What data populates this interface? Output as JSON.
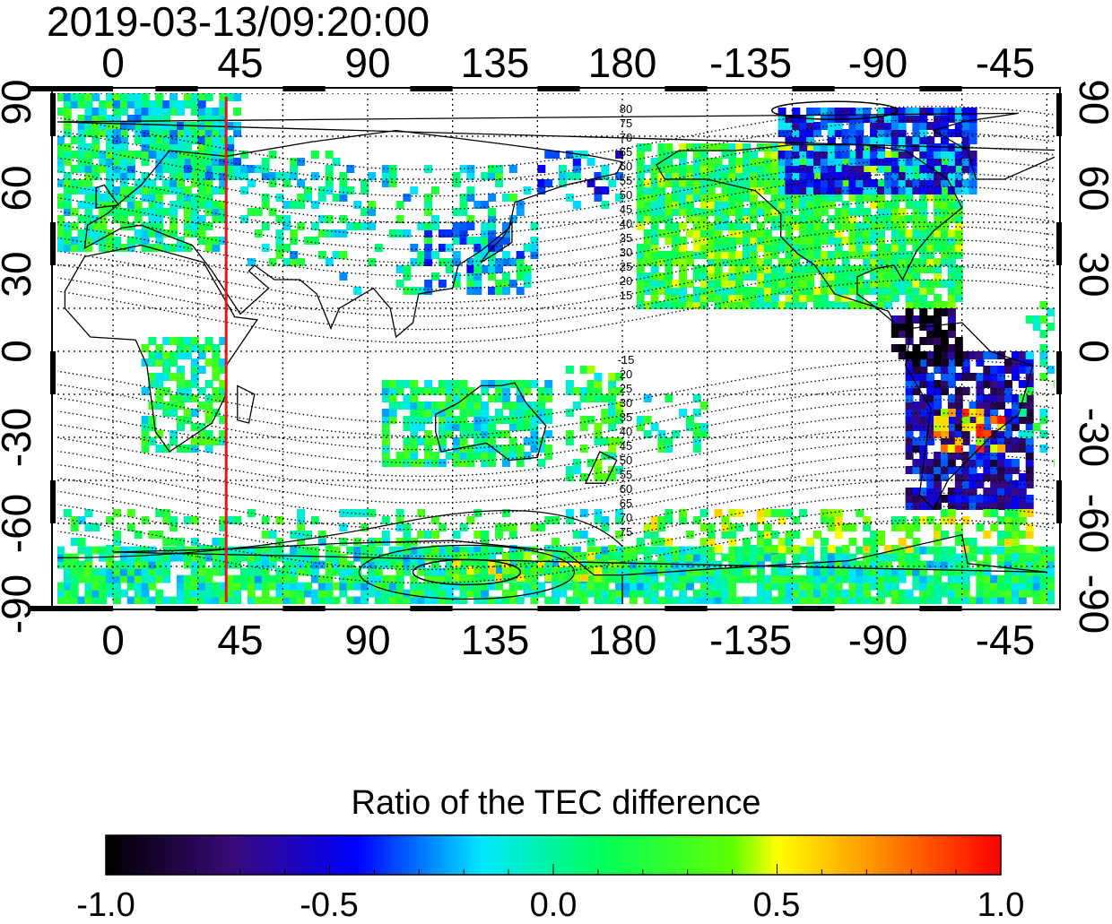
{
  "title": "2019-03-13/09:20:00",
  "map": {
    "top_lon_labels": [
      "0",
      "45",
      "90",
      "135",
      "180",
      "-135",
      "-90",
      "-45"
    ],
    "bottom_lon_labels": [
      "0",
      "45",
      "90",
      "135",
      "180",
      "-135",
      "-90",
      "-45"
    ],
    "left_lat_labels": [
      "90",
      "60",
      "30",
      "0",
      "-30",
      "-60",
      "-90"
    ],
    "right_lat_labels": [
      "90",
      "60",
      "30",
      "0",
      "-30",
      "-60",
      "-90"
    ],
    "marker_longitude": 40,
    "marker_color": "#e8141a",
    "contour_labels_north": [
      "80",
      "75",
      "70",
      "65",
      "60",
      "55",
      "50",
      "45",
      "40",
      "35",
      "30",
      "25",
      "20",
      "15"
    ],
    "contour_labels_south": [
      "-15",
      "20",
      "25",
      "30",
      "35",
      "40",
      "45",
      "50",
      "55",
      "60",
      "65",
      "70",
      "75"
    ]
  },
  "colorbar": {
    "title": "Ratio of the TEC difference",
    "tick_labels": [
      "-1.0",
      "-0.5",
      "0.0",
      "0.5",
      "1.0"
    ],
    "range": [
      -1.0,
      1.0
    ],
    "colors": [
      "#000000",
      "#3a0a78",
      "#0000ff",
      "#00ffff",
      "#00ff00",
      "#ffff00",
      "#ff8000",
      "#ff0000"
    ]
  }
}
